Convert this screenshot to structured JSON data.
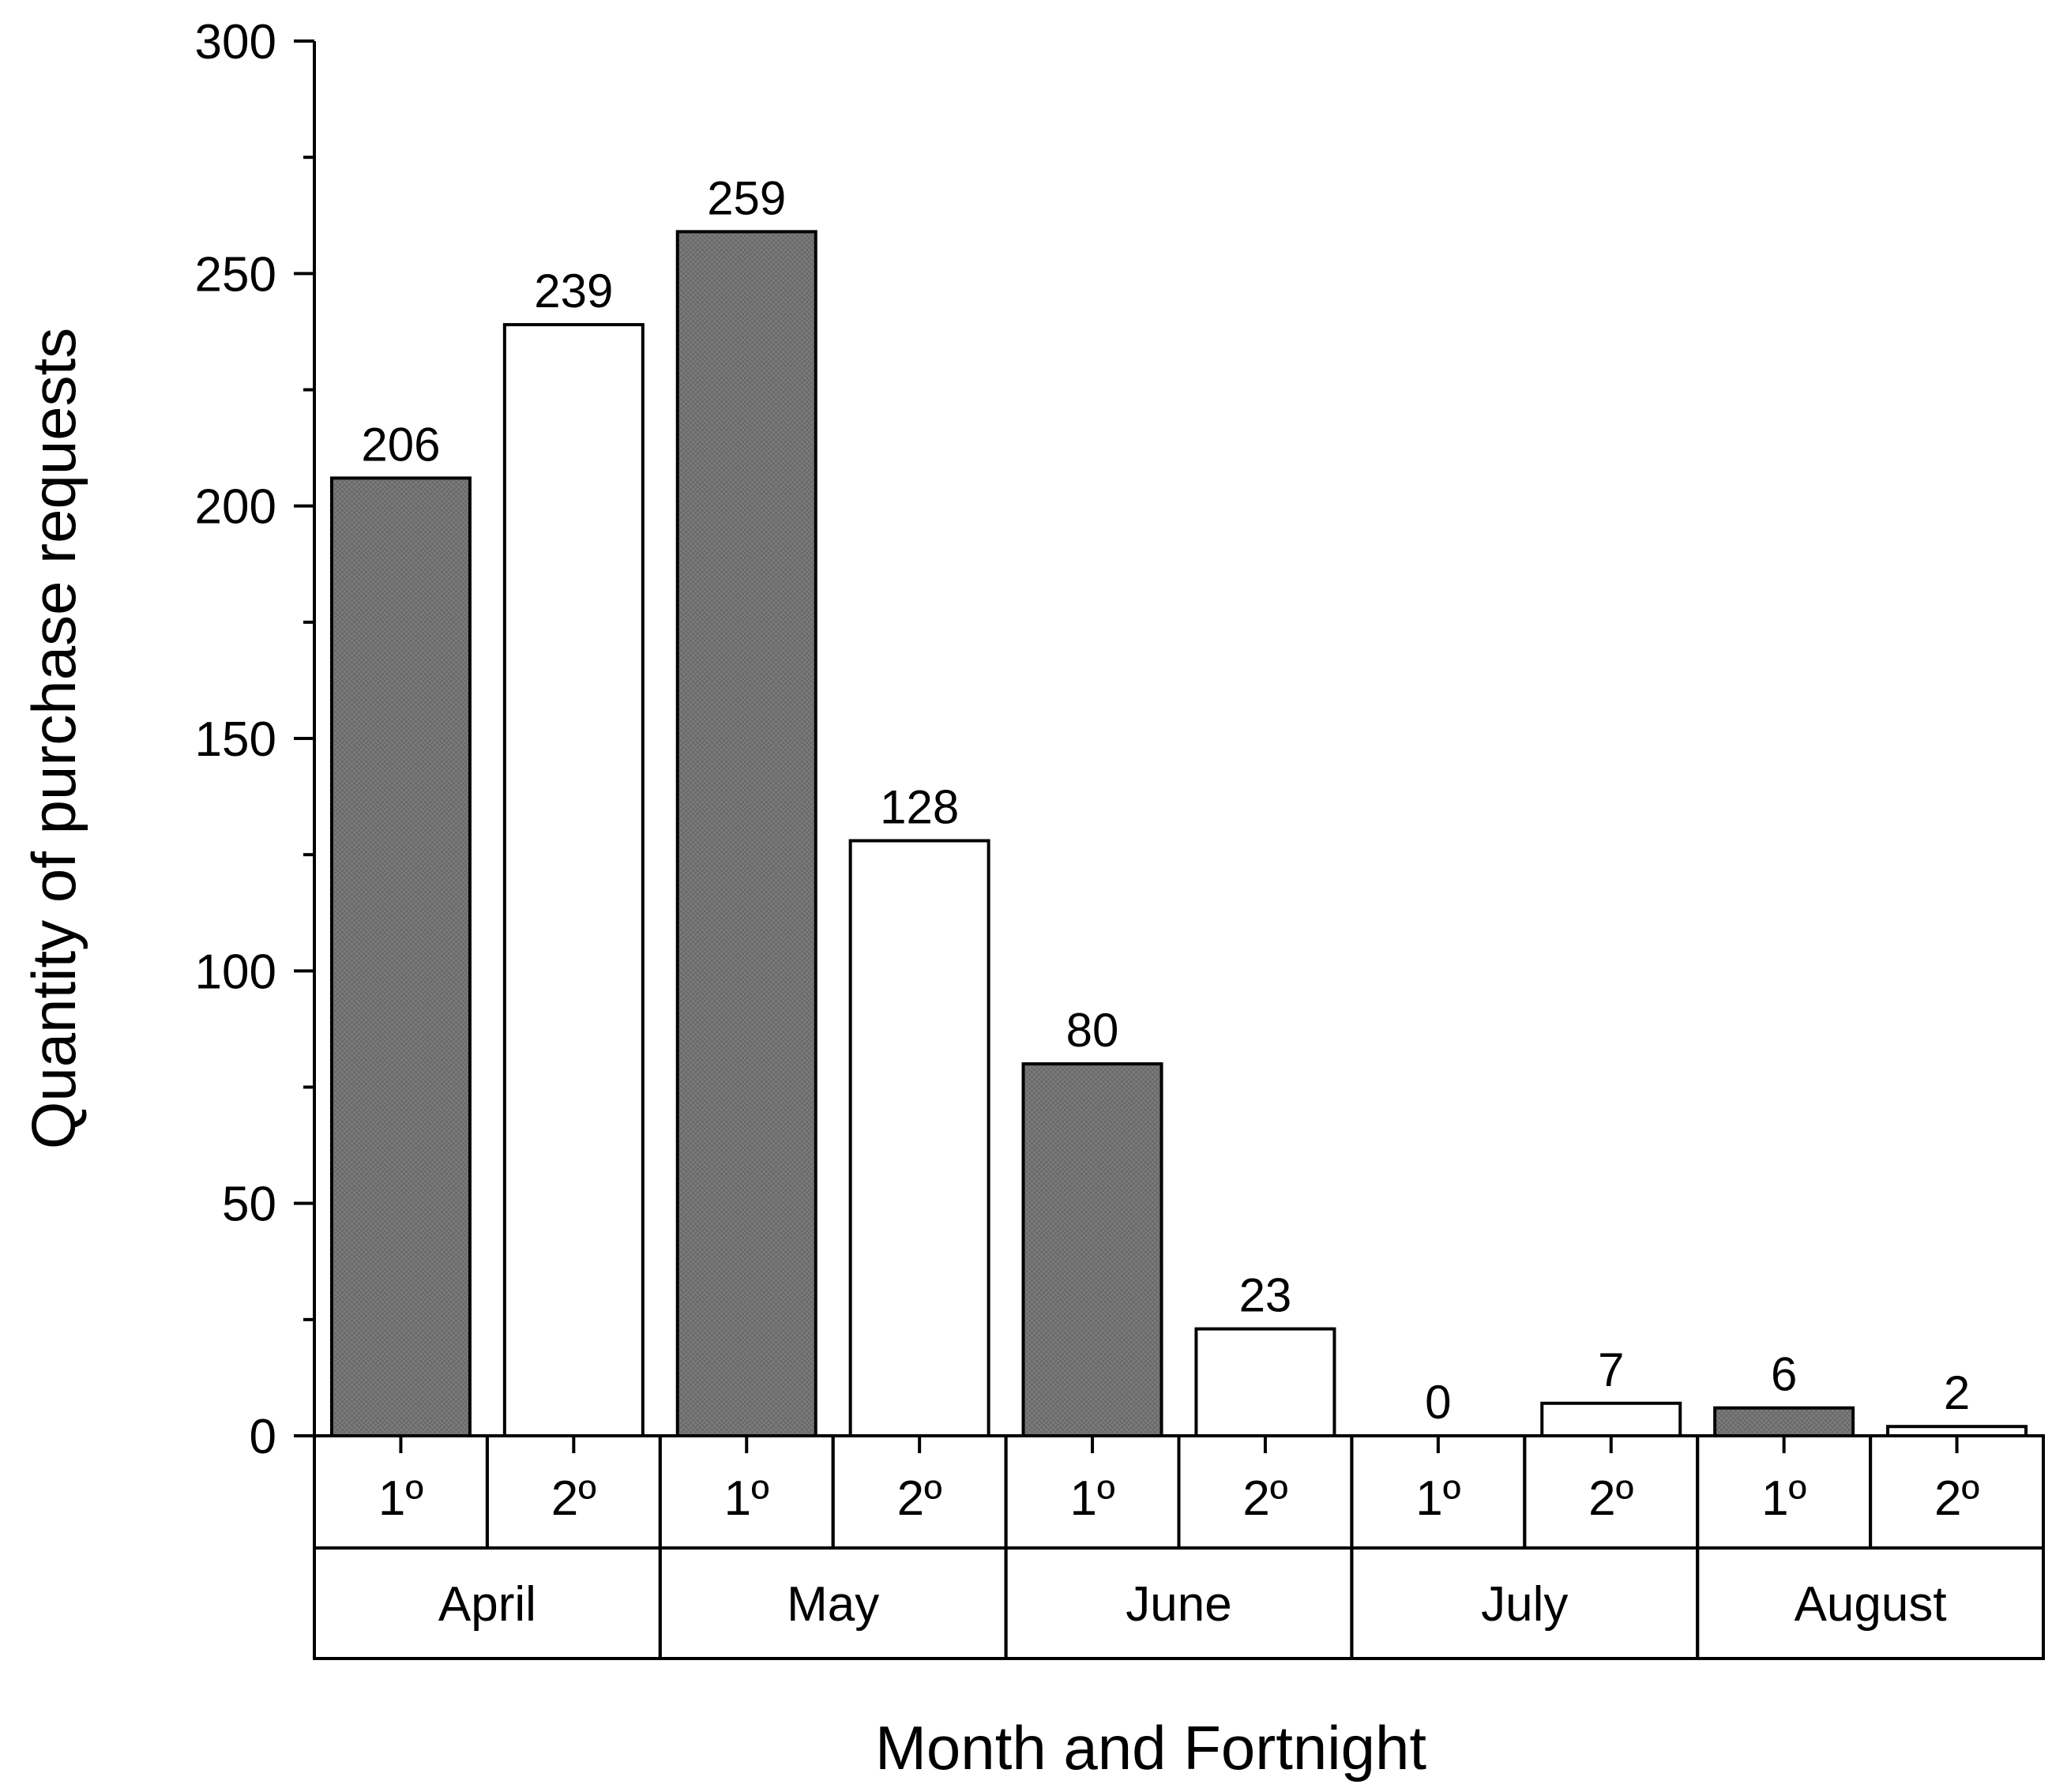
{
  "chart_data": {
    "type": "bar",
    "ylabel": "Quantity of purchase requests",
    "xlabel": "Month and Fortnight",
    "ylim": [
      0,
      300
    ],
    "y_ticks": [
      0,
      50,
      100,
      150,
      200,
      250,
      300
    ],
    "y_tick_labels": [
      "0",
      "50",
      "100",
      "150",
      "200",
      "250",
      "300"
    ],
    "grid": false,
    "colors": {
      "first_fortnight": "#707070",
      "second_fortnight": "#ffffff",
      "stroke": "#000000"
    },
    "months": [
      {
        "label": "April",
        "fortnights": [
          "1º",
          "2º"
        ]
      },
      {
        "label": "May",
        "fortnights": [
          "1º",
          "2º"
        ]
      },
      {
        "label": "June",
        "fortnights": [
          "1º",
          "2º"
        ]
      },
      {
        "label": "July",
        "fortnights": [
          "1º",
          "2º"
        ]
      },
      {
        "label": "August",
        "fortnights": [
          "1º",
          "2º"
        ]
      }
    ],
    "values": [
      206,
      239,
      259,
      128,
      80,
      23,
      0,
      7,
      6,
      2
    ],
    "value_labels": [
      "206",
      "239",
      "259",
      "128",
      "80",
      "23",
      "0",
      "7",
      "6",
      "2"
    ]
  }
}
